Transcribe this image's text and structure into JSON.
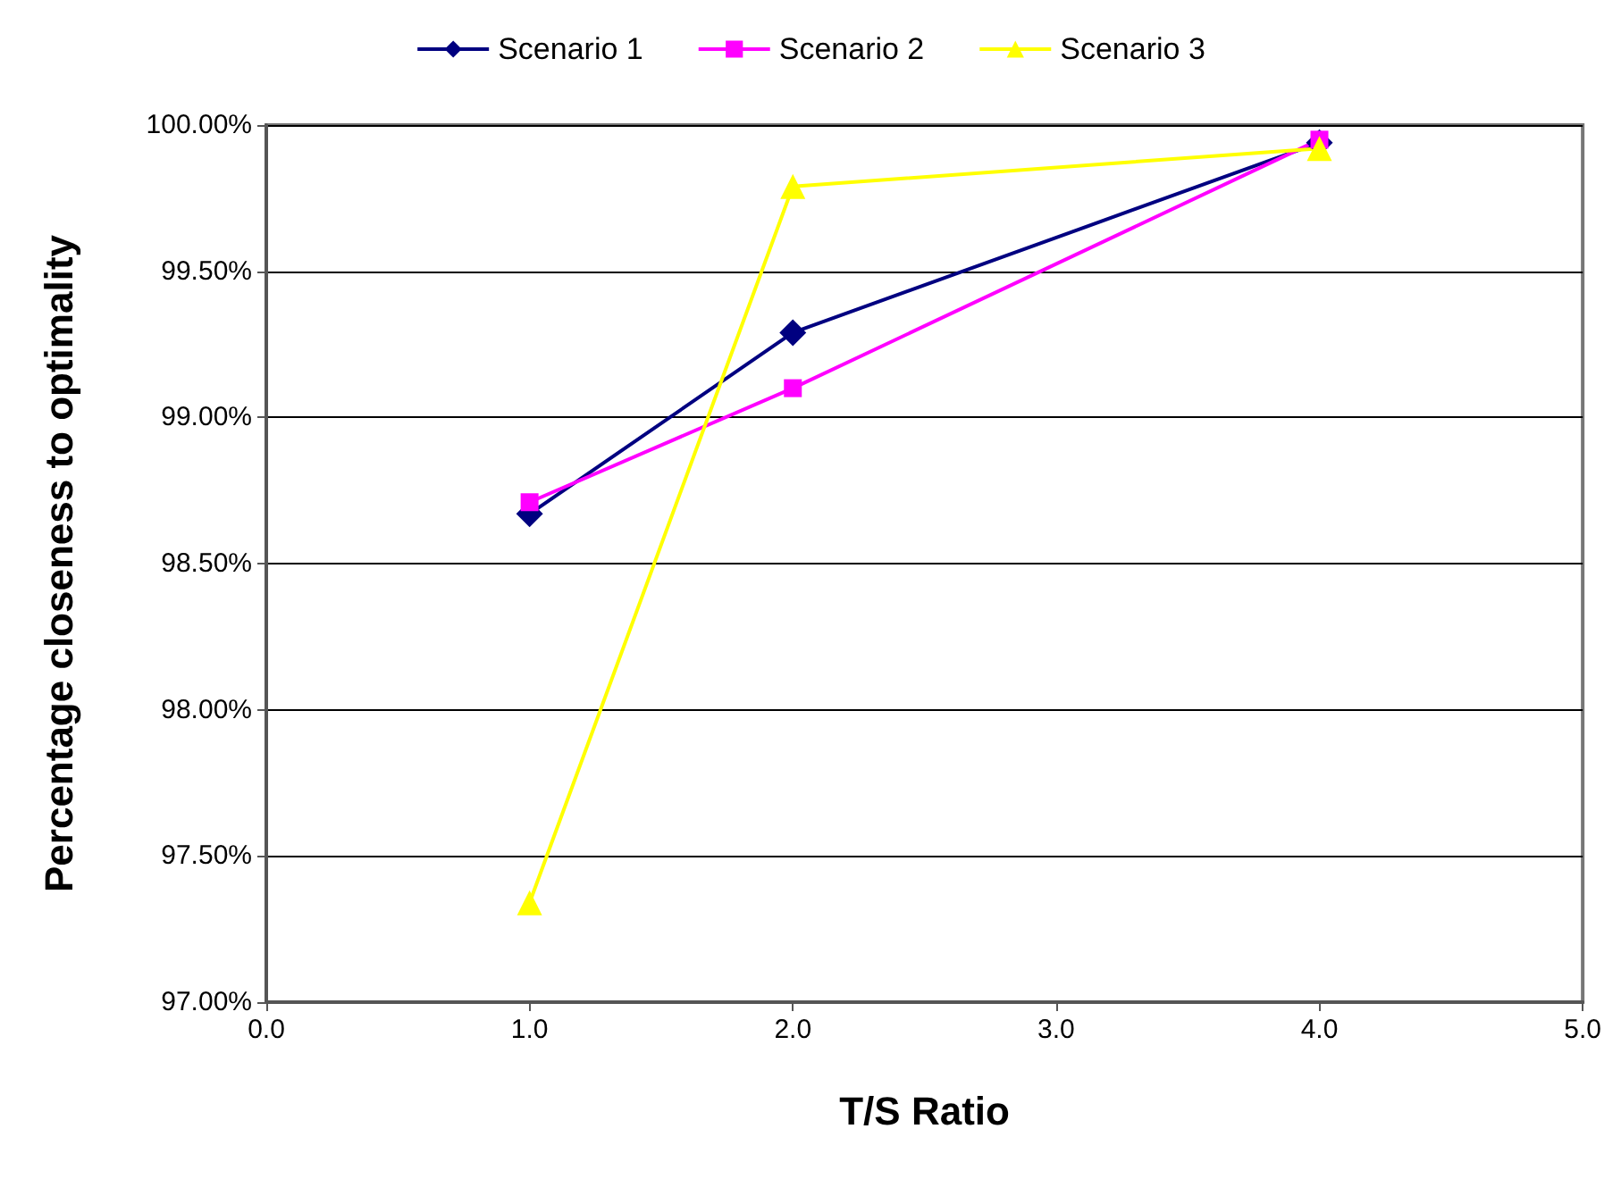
{
  "chart_data": {
    "type": "line",
    "xlabel": "T/S Ratio",
    "ylabel": "Percentage closeness to optimality",
    "x": [
      1,
      2,
      4
    ],
    "series": [
      {
        "name": "Scenario 1",
        "color": "#000080",
        "marker": "diamond",
        "values": [
          98.67,
          99.29,
          99.94
        ]
      },
      {
        "name": "Scenario 2",
        "color": "#ff00ff",
        "marker": "square",
        "values": [
          98.71,
          99.1,
          99.95
        ]
      },
      {
        "name": "Scenario 3",
        "color": "#ffff00",
        "marker": "triangle",
        "values": [
          97.34,
          99.79,
          99.92
        ]
      }
    ],
    "xlim": [
      0,
      5
    ],
    "xticks": [
      {
        "value": 0,
        "label": "0.0"
      },
      {
        "value": 1,
        "label": "1.0"
      },
      {
        "value": 2,
        "label": "2.0"
      },
      {
        "value": 3,
        "label": "3.0"
      },
      {
        "value": 4,
        "label": "4.0"
      },
      {
        "value": 5,
        "label": "5.0"
      }
    ],
    "ylim": [
      97,
      100
    ],
    "yticks": [
      {
        "value": 97,
        "label": "97.00%"
      },
      {
        "value": 97.5,
        "label": "97.50%"
      },
      {
        "value": 98,
        "label": "98.00%"
      },
      {
        "value": 98.5,
        "label": "98.50%"
      },
      {
        "value": 99,
        "label": "99.00%"
      },
      {
        "value": 99.5,
        "label": "99.50%"
      },
      {
        "value": 100,
        "label": "100.00%"
      }
    ],
    "grid": "y",
    "legend": "top",
    "line_style": "solid"
  }
}
